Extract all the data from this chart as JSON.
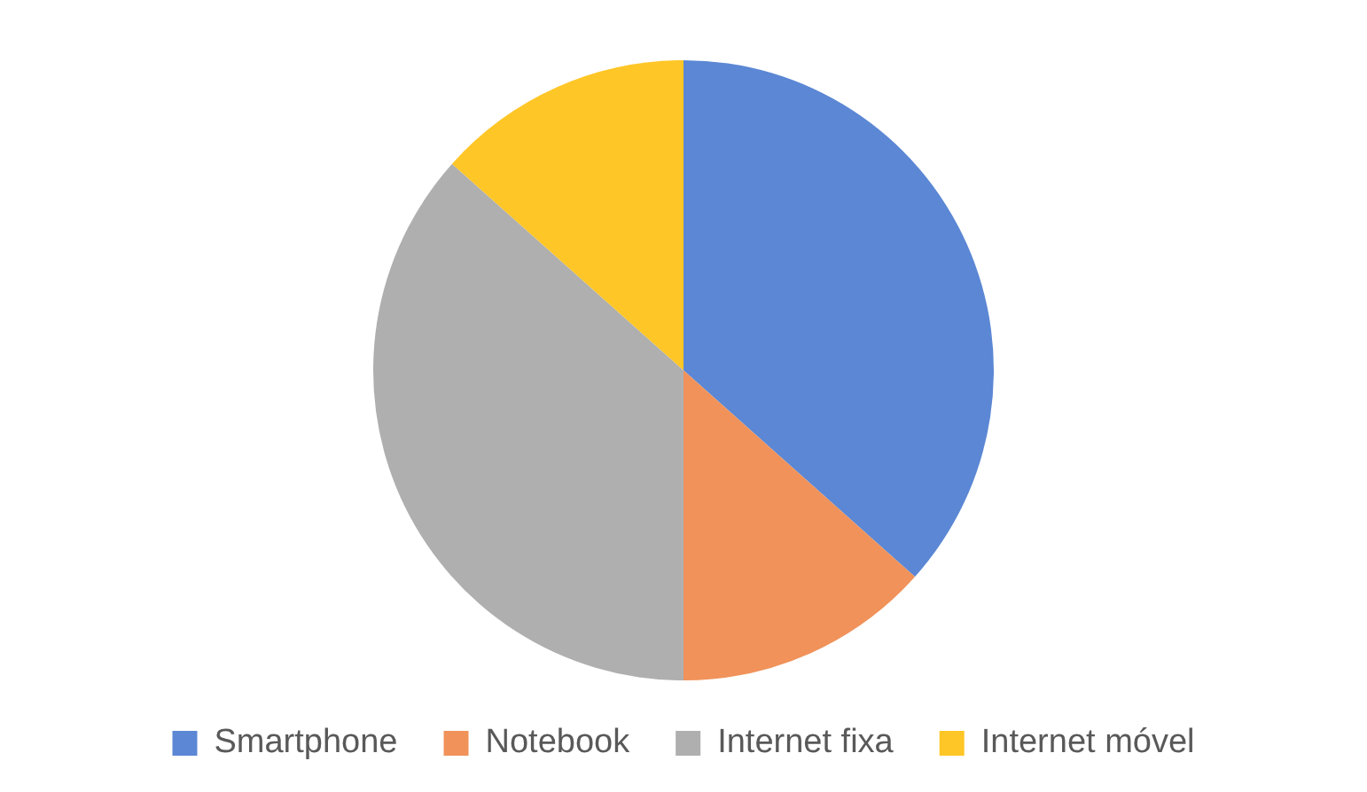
{
  "chart_data": {
    "type": "pie",
    "categories": [
      "Smartphone",
      "Notebook",
      "Internet fixa",
      "Internet móvel"
    ],
    "values": [
      36.6,
      13.4,
      36.6,
      13.4
    ],
    "colors": [
      "#5b87d4",
      "#f0925a",
      "#afafaf",
      "#ffc627"
    ],
    "legend": "bottom"
  }
}
